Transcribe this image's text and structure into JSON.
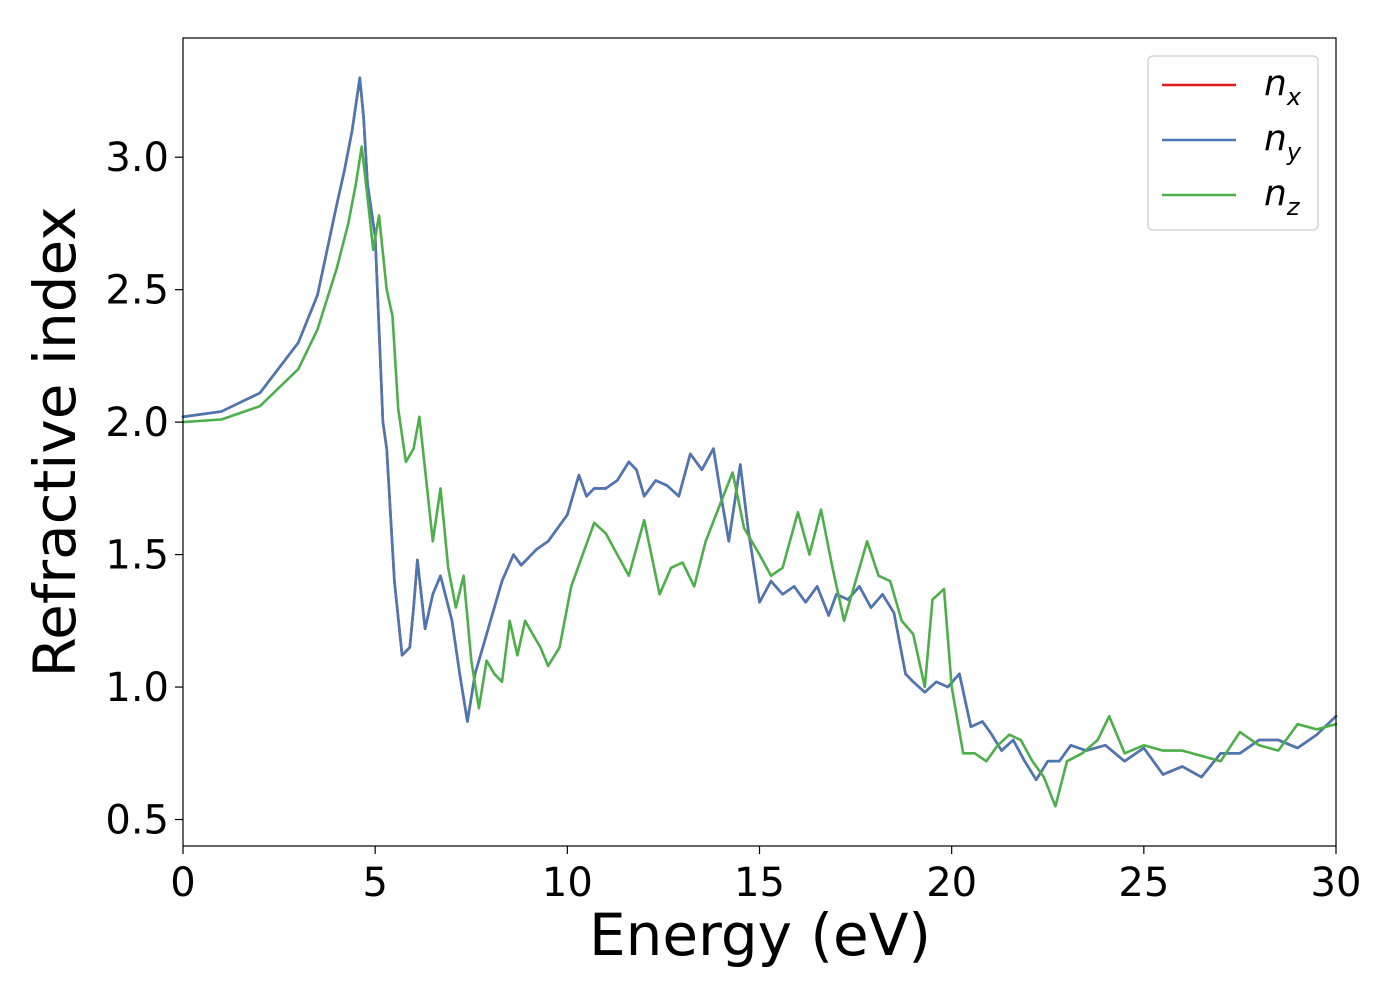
{
  "chart_data": {
    "type": "line",
    "title": "",
    "xlabel": "Energy (eV)",
    "ylabel": "Refractive index",
    "xlim": [
      0,
      30
    ],
    "ylim": [
      0.4,
      3.45
    ],
    "xticks": [
      0,
      5,
      10,
      15,
      20,
      25,
      30
    ],
    "yticks": [
      0.5,
      1.0,
      1.5,
      2.0,
      2.5,
      3.0
    ],
    "xtick_labels": [
      "0",
      "5",
      "10",
      "15",
      "20",
      "25",
      "30"
    ],
    "ytick_labels": [
      "0.5",
      "1.0",
      "1.5",
      "2.0",
      "2.5",
      "3.0"
    ],
    "grid": false,
    "legend_position": "top-right",
    "series": [
      {
        "name": "n_x",
        "label_base": "n",
        "label_sub": "x",
        "color": "#e41a1c",
        "x": [
          0,
          1,
          2,
          3,
          3.5,
          4,
          4.2,
          4.4,
          4.6,
          4.7,
          4.8,
          5.0,
          5.2,
          5.3,
          5.5,
          5.7,
          5.9,
          6.0,
          6.1,
          6.3,
          6.5,
          6.7,
          7.0,
          7.2,
          7.4,
          7.6,
          8.0,
          8.3,
          8.6,
          8.8,
          9.2,
          9.5,
          10.0,
          10.3,
          10.5,
          10.7,
          11.0,
          11.3,
          11.6,
          11.8,
          12.0,
          12.3,
          12.6,
          12.9,
          13.2,
          13.5,
          13.8,
          14.0,
          14.2,
          14.5,
          14.7,
          15.0,
          15.3,
          15.6,
          15.9,
          16.2,
          16.5,
          16.8,
          17.0,
          17.3,
          17.6,
          17.9,
          18.2,
          18.5,
          18.8,
          19.0,
          19.3,
          19.6,
          19.9,
          20.2,
          20.5,
          20.8,
          21.0,
          21.3,
          21.6,
          21.9,
          22.2,
          22.5,
          22.8,
          23.1,
          23.5,
          24.0,
          24.5,
          25.0,
          25.5,
          26.0,
          26.5,
          27.0,
          27.5,
          28.0,
          28.5,
          29.0,
          29.5,
          30.0
        ],
        "y": [
          2.02,
          2.04,
          2.11,
          2.3,
          2.48,
          2.82,
          2.95,
          3.1,
          3.3,
          3.15,
          2.9,
          2.7,
          2.0,
          1.9,
          1.4,
          1.12,
          1.15,
          1.3,
          1.48,
          1.22,
          1.35,
          1.42,
          1.25,
          1.05,
          0.87,
          1.05,
          1.25,
          1.4,
          1.5,
          1.46,
          1.52,
          1.55,
          1.65,
          1.8,
          1.72,
          1.75,
          1.75,
          1.78,
          1.85,
          1.82,
          1.72,
          1.78,
          1.76,
          1.72,
          1.88,
          1.82,
          1.9,
          1.72,
          1.55,
          1.84,
          1.6,
          1.32,
          1.4,
          1.35,
          1.38,
          1.32,
          1.38,
          1.27,
          1.35,
          1.33,
          1.38,
          1.3,
          1.35,
          1.28,
          1.05,
          1.02,
          0.98,
          1.02,
          1.0,
          1.05,
          0.85,
          0.87,
          0.83,
          0.76,
          0.8,
          0.72,
          0.65,
          0.72,
          0.72,
          0.78,
          0.76,
          0.78,
          0.72,
          0.77,
          0.67,
          0.7,
          0.66,
          0.75,
          0.75,
          0.8,
          0.8,
          0.77,
          0.82,
          0.89
        ]
      },
      {
        "name": "n_y",
        "label_base": "n",
        "label_sub": "y",
        "color": "#4a78b5",
        "x": [
          0,
          1,
          2,
          3,
          3.5,
          4,
          4.2,
          4.4,
          4.6,
          4.7,
          4.8,
          5.0,
          5.2,
          5.3,
          5.5,
          5.7,
          5.9,
          6.0,
          6.1,
          6.3,
          6.5,
          6.7,
          7.0,
          7.2,
          7.4,
          7.6,
          8.0,
          8.3,
          8.6,
          8.8,
          9.2,
          9.5,
          10.0,
          10.3,
          10.5,
          10.7,
          11.0,
          11.3,
          11.6,
          11.8,
          12.0,
          12.3,
          12.6,
          12.9,
          13.2,
          13.5,
          13.8,
          14.0,
          14.2,
          14.5,
          14.7,
          15.0,
          15.3,
          15.6,
          15.9,
          16.2,
          16.5,
          16.8,
          17.0,
          17.3,
          17.6,
          17.9,
          18.2,
          18.5,
          18.8,
          19.0,
          19.3,
          19.6,
          19.9,
          20.2,
          20.5,
          20.8,
          21.0,
          21.3,
          21.6,
          21.9,
          22.2,
          22.5,
          22.8,
          23.1,
          23.5,
          24.0,
          24.5,
          25.0,
          25.5,
          26.0,
          26.5,
          27.0,
          27.5,
          28.0,
          28.5,
          29.0,
          29.5,
          30.0
        ],
        "y": [
          2.02,
          2.04,
          2.11,
          2.3,
          2.48,
          2.82,
          2.95,
          3.1,
          3.3,
          3.15,
          2.9,
          2.7,
          2.0,
          1.9,
          1.4,
          1.12,
          1.15,
          1.3,
          1.48,
          1.22,
          1.35,
          1.42,
          1.25,
          1.05,
          0.87,
          1.05,
          1.25,
          1.4,
          1.5,
          1.46,
          1.52,
          1.55,
          1.65,
          1.8,
          1.72,
          1.75,
          1.75,
          1.78,
          1.85,
          1.82,
          1.72,
          1.78,
          1.76,
          1.72,
          1.88,
          1.82,
          1.9,
          1.72,
          1.55,
          1.84,
          1.6,
          1.32,
          1.4,
          1.35,
          1.38,
          1.32,
          1.38,
          1.27,
          1.35,
          1.33,
          1.38,
          1.3,
          1.35,
          1.28,
          1.05,
          1.02,
          0.98,
          1.02,
          1.0,
          1.05,
          0.85,
          0.87,
          0.83,
          0.76,
          0.8,
          0.72,
          0.65,
          0.72,
          0.72,
          0.78,
          0.76,
          0.78,
          0.72,
          0.77,
          0.67,
          0.7,
          0.66,
          0.75,
          0.75,
          0.8,
          0.8,
          0.77,
          0.82,
          0.89
        ]
      },
      {
        "name": "n_z",
        "label_base": "n",
        "label_sub": "z",
        "color": "#4daf4a",
        "x": [
          0,
          1,
          2,
          3,
          3.5,
          4,
          4.3,
          4.5,
          4.65,
          4.8,
          4.95,
          5.1,
          5.3,
          5.45,
          5.6,
          5.8,
          6.0,
          6.15,
          6.35,
          6.5,
          6.7,
          6.9,
          7.1,
          7.3,
          7.5,
          7.7,
          7.9,
          8.1,
          8.3,
          8.5,
          8.7,
          8.9,
          9.1,
          9.3,
          9.5,
          9.8,
          10.1,
          10.4,
          10.7,
          11.0,
          11.3,
          11.6,
          12.0,
          12.4,
          12.7,
          13.0,
          13.3,
          13.6,
          14.0,
          14.3,
          14.6,
          15.0,
          15.3,
          15.6,
          16.0,
          16.3,
          16.6,
          16.9,
          17.2,
          17.5,
          17.8,
          18.1,
          18.4,
          18.7,
          19.0,
          19.3,
          19.5,
          19.8,
          20.0,
          20.3,
          20.6,
          20.9,
          21.2,
          21.5,
          21.8,
          22.1,
          22.4,
          22.7,
          23.0,
          23.4,
          23.8,
          24.1,
          24.5,
          25.0,
          25.5,
          26.0,
          26.5,
          27.0,
          27.5,
          28.0,
          28.5,
          29.0,
          29.5,
          30.0
        ],
        "y": [
          2.0,
          2.01,
          2.06,
          2.2,
          2.35,
          2.58,
          2.75,
          2.9,
          3.04,
          2.85,
          2.65,
          2.78,
          2.5,
          2.4,
          2.05,
          1.85,
          1.9,
          2.02,
          1.75,
          1.55,
          1.75,
          1.45,
          1.3,
          1.42,
          1.1,
          0.92,
          1.1,
          1.05,
          1.02,
          1.25,
          1.12,
          1.25,
          1.2,
          1.15,
          1.08,
          1.15,
          1.38,
          1.5,
          1.62,
          1.58,
          1.5,
          1.42,
          1.63,
          1.35,
          1.45,
          1.47,
          1.38,
          1.55,
          1.7,
          1.81,
          1.6,
          1.5,
          1.42,
          1.45,
          1.66,
          1.5,
          1.67,
          1.45,
          1.25,
          1.4,
          1.55,
          1.42,
          1.4,
          1.25,
          1.2,
          1.0,
          1.33,
          1.37,
          1.0,
          0.75,
          0.75,
          0.72,
          0.78,
          0.82,
          0.8,
          0.72,
          0.66,
          0.55,
          0.72,
          0.75,
          0.8,
          0.89,
          0.75,
          0.78,
          0.76,
          0.76,
          0.74,
          0.72,
          0.83,
          0.78,
          0.76,
          0.86,
          0.84,
          0.86
        ]
      }
    ]
  }
}
